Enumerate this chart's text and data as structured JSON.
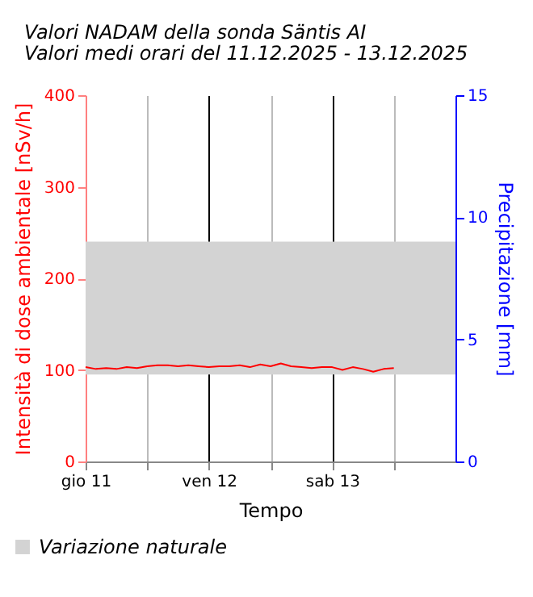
{
  "chart_data": {
    "type": "line",
    "title": "Valori NADAM della sonda Säntis AI",
    "subtitle": "Valori medi orari del 11.12.2025 - 13.12.2025",
    "xlabel": "Tempo",
    "ylabel": "Intensità di dose ambientale [nSv/h]",
    "y2label": "Precipitazione [mm]",
    "x": [
      "2025-12-11T00:00",
      "2025-12-11T02:00",
      "2025-12-11T04:00",
      "2025-12-11T06:00",
      "2025-12-11T08:00",
      "2025-12-11T10:00",
      "2025-12-11T12:00",
      "2025-12-11T14:00",
      "2025-12-11T16:00",
      "2025-12-11T18:00",
      "2025-12-11T20:00",
      "2025-12-11T22:00",
      "2025-12-12T00:00",
      "2025-12-12T02:00",
      "2025-12-12T04:00",
      "2025-12-12T06:00",
      "2025-12-12T08:00",
      "2025-12-12T10:00",
      "2025-12-12T12:00",
      "2025-12-12T14:00",
      "2025-12-12T16:00",
      "2025-12-12T18:00",
      "2025-12-12T20:00",
      "2025-12-12T22:00",
      "2025-12-13T00:00",
      "2025-12-13T02:00",
      "2025-12-13T04:00",
      "2025-12-13T06:00",
      "2025-12-13T08:00",
      "2025-12-13T10:00",
      "2025-12-13T12:00"
    ],
    "series": [
      {
        "color": "#ff0000",
        "values": [
          103,
          101,
          102,
          101,
          103,
          102,
          104,
          105,
          105,
          104,
          105,
          104,
          103,
          104,
          104,
          105,
          103,
          106,
          104,
          107,
          104,
          103,
          102,
          103,
          103,
          100,
          103,
          101,
          98,
          101,
          102
        ]
      }
    ],
    "xlim": [
      "2025-12-11T00:00",
      "2025-12-14T00:00"
    ],
    "xticks": [
      {
        "value": "2025-12-11T00:00",
        "label": "gio 11"
      },
      {
        "value": "2025-12-11T12:00",
        "label": null
      },
      {
        "value": "2025-12-12T00:00",
        "label": "ven 12"
      },
      {
        "value": "2025-12-12T12:00",
        "label": null
      },
      {
        "value": "2025-12-13T00:00",
        "label": "sab 13"
      },
      {
        "value": "2025-12-13T12:00",
        "label": null
      }
    ],
    "ylim": [
      0,
      400
    ],
    "yticks": [
      0,
      100,
      200,
      300,
      400
    ],
    "y2lim": [
      0,
      15
    ],
    "y2ticks": [
      0,
      5,
      10,
      15
    ],
    "bands": [
      {
        "axis": "y",
        "from": 95,
        "to": 240,
        "label": "Variazione naturale",
        "color": "#d3d3d3"
      }
    ],
    "grid": "x",
    "legend": "bottom left",
    "marker": "none",
    "line_style": "solid"
  }
}
